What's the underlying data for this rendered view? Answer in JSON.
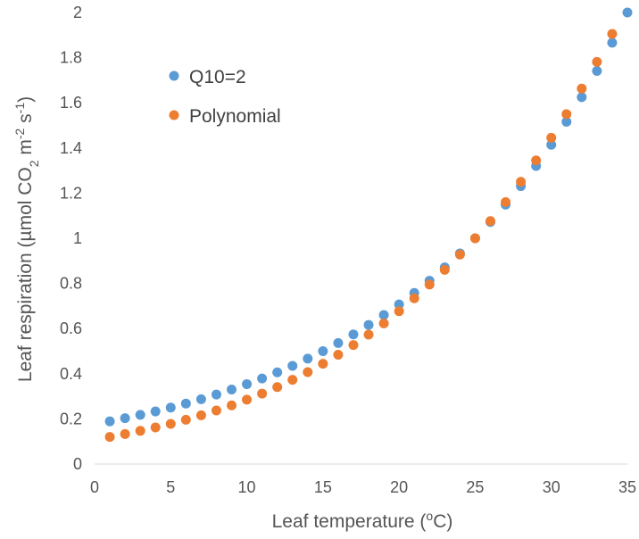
{
  "chart_data": {
    "type": "scatter",
    "title": "",
    "xlabel": {
      "prefix": "Leaf temperature (",
      "sup": "o",
      "suffix": "C)"
    },
    "ylabel": {
      "p1": "Leaf respiration (µmol CO",
      "sub": "2",
      "p2": " m",
      "sup1": "-2",
      "p3": " s",
      "sup2": "-1",
      "p4": ")"
    },
    "xlim": [
      0,
      35
    ],
    "ylim": [
      0,
      2
    ],
    "xticks": [
      0,
      5,
      10,
      15,
      20,
      25,
      30,
      35
    ],
    "yticks": [
      0,
      0.2,
      0.4,
      0.6,
      0.8,
      1,
      1.2,
      1.4,
      1.6,
      1.8,
      2
    ],
    "grid": false,
    "legend_position": "top-left",
    "series": [
      {
        "name": "Q10=2",
        "color": "#5b9bd5",
        "x": [
          1,
          2,
          3,
          4,
          5,
          6,
          7,
          8,
          9,
          10,
          11,
          12,
          13,
          14,
          15,
          16,
          17,
          18,
          19,
          20,
          21,
          22,
          23,
          24,
          25,
          26,
          27,
          28,
          29,
          30,
          31,
          32,
          33,
          34,
          35
        ],
        "y": [
          0.189,
          0.203,
          0.218,
          0.233,
          0.25,
          0.268,
          0.287,
          0.308,
          0.33,
          0.354,
          0.379,
          0.406,
          0.435,
          0.467,
          0.5,
          0.536,
          0.574,
          0.616,
          0.66,
          0.707,
          0.758,
          0.812,
          0.871,
          0.933,
          1.0,
          1.072,
          1.149,
          1.231,
          1.32,
          1.414,
          1.516,
          1.625,
          1.741,
          1.866,
          2.0
        ]
      },
      {
        "name": "Polynomial",
        "color": "#ed7d31",
        "x": [
          1,
          2,
          3,
          4,
          5,
          6,
          7,
          8,
          9,
          10,
          11,
          12,
          13,
          14,
          15,
          16,
          17,
          18,
          19,
          20,
          21,
          22,
          23,
          24,
          25,
          26,
          27,
          28,
          29,
          30,
          31,
          32,
          33,
          34
        ],
        "y": [
          0.12,
          0.133,
          0.147,
          0.162,
          0.178,
          0.196,
          0.216,
          0.237,
          0.26,
          0.285,
          0.312,
          0.341,
          0.373,
          0.407,
          0.444,
          0.484,
          0.527,
          0.573,
          0.623,
          0.677,
          0.734,
          0.795,
          0.86,
          0.928,
          1.0,
          1.076,
          1.16,
          1.25,
          1.345,
          1.445,
          1.55,
          1.663,
          1.781,
          1.905
        ]
      }
    ]
  }
}
